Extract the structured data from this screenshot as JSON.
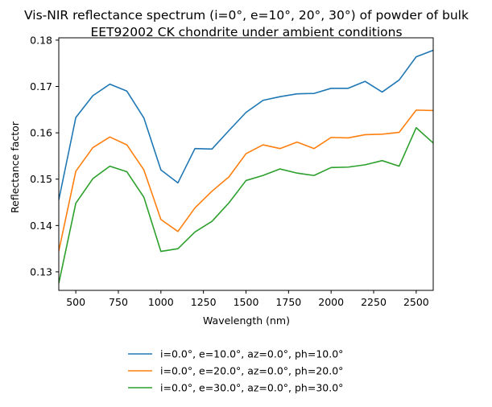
{
  "chart_data": {
    "type": "line",
    "title_line1": "Vis-NIR reflectance spectrum (i=0°, e=10°, 20°, 30°) of powder of bulk",
    "title_line2": "EET92002 CK chondrite under ambient conditions",
    "xlabel": "Wavelength (nm)",
    "ylabel": "Reflectance factor",
    "xlim": [
      400,
      2600
    ],
    "ylim": [
      0.126,
      0.1805
    ],
    "xticks": [
      500,
      750,
      1000,
      1250,
      1500,
      1750,
      2000,
      2250,
      2500
    ],
    "yticks": [
      0.13,
      0.14,
      0.15,
      0.16,
      0.17,
      0.18
    ],
    "ytick_labels": [
      "0.13",
      "0.14",
      "0.15",
      "0.16",
      "0.17",
      "0.18"
    ],
    "grid": false,
    "legend_position": "below",
    "x": [
      400,
      500,
      600,
      700,
      800,
      900,
      1000,
      1100,
      1200,
      1300,
      1400,
      1500,
      1600,
      1700,
      1800,
      1900,
      2000,
      2100,
      2200,
      2300,
      2400,
      2500,
      2600
    ],
    "series": [
      {
        "name": "i=0.0°, e=10.0°, az=0.0°, ph=10.0°",
        "color": "#1f77b4",
        "values": [
          0.1455,
          0.1633,
          0.168,
          0.1705,
          0.169,
          0.1632,
          0.152,
          0.1492,
          0.1566,
          0.1565,
          0.1605,
          0.1644,
          0.167,
          0.1678,
          0.1684,
          0.1685,
          0.1696,
          0.1696,
          0.1711,
          0.1688,
          0.1714,
          0.1764,
          0.1778
        ]
      },
      {
        "name": "i=0.0°, e=20.0°, az=0.0°, ph=20.0°",
        "color": "#ff7f0e",
        "values": [
          0.1345,
          0.1517,
          0.1568,
          0.1591,
          0.1574,
          0.152,
          0.1413,
          0.1387,
          0.1438,
          0.1474,
          0.1505,
          0.1555,
          0.1574,
          0.1566,
          0.158,
          0.1566,
          0.159,
          0.1589,
          0.1596,
          0.1597,
          0.1601,
          0.1649,
          0.1648
        ]
      },
      {
        "name": "i=0.0°, e=30.0°, az=0.0°, ph=30.0°",
        "color": "#2ca02c",
        "values": [
          0.1275,
          0.1448,
          0.1501,
          0.1528,
          0.1516,
          0.1461,
          0.1344,
          0.135,
          0.1386,
          0.1409,
          0.1449,
          0.1497,
          0.1508,
          0.1522,
          0.1513,
          0.1508,
          0.1525,
          0.1526,
          0.1531,
          0.154,
          0.1528,
          0.1611,
          0.1578
        ]
      }
    ]
  }
}
